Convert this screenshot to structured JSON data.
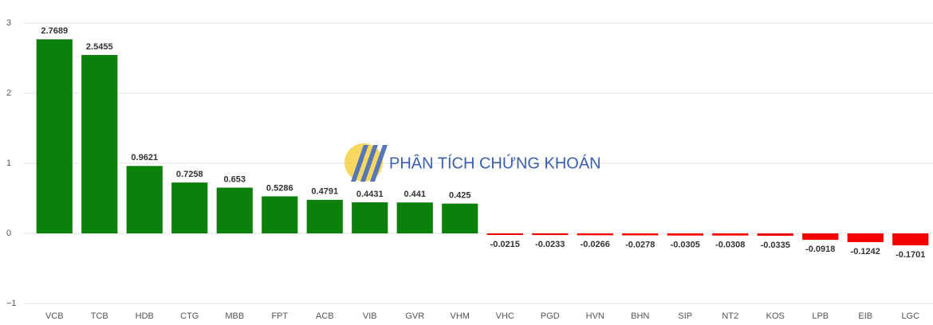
{
  "chart_data": {
    "type": "bar",
    "watermark": "PHÂN TÍCH CHỨNG KHOÁN",
    "categories": [
      "VCB",
      "TCB",
      "HDB",
      "CTG",
      "MBB",
      "FPT",
      "ACB",
      "VIB",
      "GVR",
      "VHM",
      "VHC",
      "PGD",
      "HVN",
      "BHN",
      "SIP",
      "NT2",
      "KOS",
      "LPB",
      "EIB",
      "LGC"
    ],
    "values": [
      2.7689,
      2.5455,
      0.9621,
      0.7258,
      0.653,
      0.5286,
      0.4791,
      0.4431,
      0.441,
      0.425,
      -0.0215,
      -0.0233,
      -0.0266,
      -0.0278,
      -0.0305,
      -0.0308,
      -0.0335,
      -0.0918,
      -0.1242,
      -0.1701
    ],
    "positive_color": "#0b800b",
    "negative_color": "#f50000",
    "ylim": [
      -1,
      3
    ],
    "yticks": [
      {
        "value": -1,
        "label": "−1"
      },
      0,
      1,
      2,
      3
    ],
    "grid": true
  }
}
